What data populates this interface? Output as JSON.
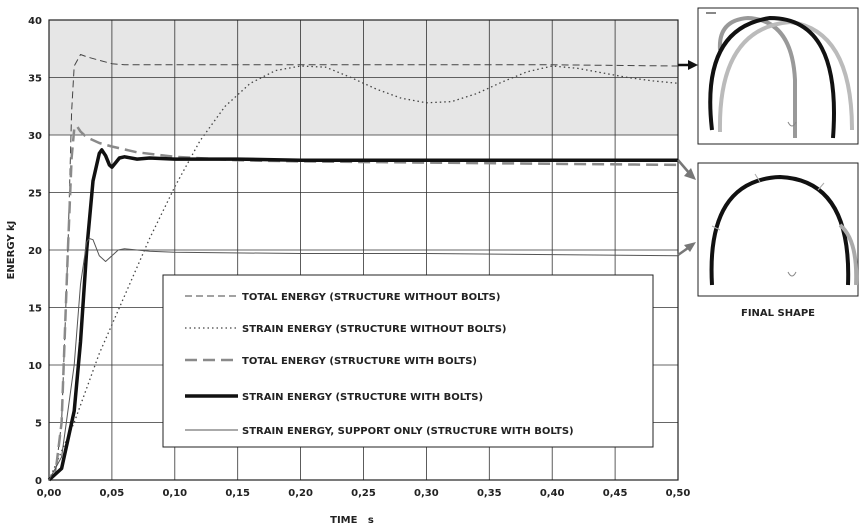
{
  "chart_data": {
    "type": "line",
    "xlabel": "TIME   s",
    "ylabel": "ENERGY   kJ",
    "xlim": [
      0,
      0.5
    ],
    "ylim": [
      0,
      40
    ],
    "x_ticks": [
      "0,00",
      "0,05",
      "0,10",
      "0,15",
      "0,20",
      "0,25",
      "0,30",
      "0,35",
      "0,40",
      "0,45",
      "0,50"
    ],
    "y_ticks": [
      "0",
      "5",
      "10",
      "15",
      "20",
      "25",
      "30",
      "35",
      "40"
    ],
    "grid": true,
    "legend_position": "center-bottom",
    "series": [
      {
        "name": "TOTAL ENERGY (STRUCTURE WITHOUT BOLTS)",
        "style": "dashed",
        "color": "#444444",
        "points": [
          [
            0,
            0
          ],
          [
            0.005,
            0.5
          ],
          [
            0.01,
            5
          ],
          [
            0.015,
            20
          ],
          [
            0.018,
            32
          ],
          [
            0.02,
            36
          ],
          [
            0.025,
            37
          ],
          [
            0.03,
            36.8
          ],
          [
            0.04,
            36.5
          ],
          [
            0.05,
            36.2
          ],
          [
            0.06,
            36.1
          ],
          [
            0.1,
            36.1
          ],
          [
            0.2,
            36.1
          ],
          [
            0.3,
            36.1
          ],
          [
            0.4,
            36.1
          ],
          [
            0.5,
            36.0
          ]
        ]
      },
      {
        "name": "STRAIN ENERGY (STRUCTURE WITHOUT BOLTS)",
        "style": "dotted",
        "color": "#444444",
        "points": [
          [
            0,
            0
          ],
          [
            0.02,
            5
          ],
          [
            0.04,
            11
          ],
          [
            0.06,
            16
          ],
          [
            0.08,
            21
          ],
          [
            0.1,
            25.5
          ],
          [
            0.12,
            29.5
          ],
          [
            0.14,
            32.5
          ],
          [
            0.16,
            34.5
          ],
          [
            0.18,
            35.6
          ],
          [
            0.2,
            36
          ],
          [
            0.22,
            35.9
          ],
          [
            0.24,
            35
          ],
          [
            0.26,
            34
          ],
          [
            0.28,
            33.2
          ],
          [
            0.3,
            32.8
          ],
          [
            0.32,
            32.9
          ],
          [
            0.34,
            33.6
          ],
          [
            0.36,
            34.6
          ],
          [
            0.38,
            35.5
          ],
          [
            0.4,
            36
          ],
          [
            0.42,
            35.8
          ],
          [
            0.44,
            35.4
          ],
          [
            0.46,
            35
          ],
          [
            0.48,
            34.7
          ],
          [
            0.5,
            34.5
          ]
        ]
      },
      {
        "name": "TOTAL ENERGY (STRUCTURE WITH BOLTS)",
        "style": "thick-dashed",
        "color": "#8a8a8a",
        "points": [
          [
            0,
            0
          ],
          [
            0.005,
            0.5
          ],
          [
            0.01,
            5
          ],
          [
            0.015,
            20
          ],
          [
            0.018,
            28
          ],
          [
            0.02,
            30.5
          ],
          [
            0.022,
            30.8
          ],
          [
            0.025,
            30.3
          ],
          [
            0.03,
            29.8
          ],
          [
            0.04,
            29.3
          ],
          [
            0.05,
            29
          ],
          [
            0.07,
            28.5
          ],
          [
            0.1,
            28.1
          ],
          [
            0.15,
            27.8
          ],
          [
            0.2,
            27.7
          ],
          [
            0.3,
            27.6
          ],
          [
            0.4,
            27.5
          ],
          [
            0.5,
            27.4
          ]
        ]
      },
      {
        "name": "STRAIN ENERGY (STRUCTURE WITH BOLTS)",
        "style": "thick-solid",
        "color": "#111111",
        "points": [
          [
            0,
            0
          ],
          [
            0.01,
            1
          ],
          [
            0.02,
            6
          ],
          [
            0.025,
            12
          ],
          [
            0.03,
            20
          ],
          [
            0.035,
            26
          ],
          [
            0.04,
            28.4
          ],
          [
            0.042,
            28.7
          ],
          [
            0.045,
            28.2
          ],
          [
            0.048,
            27.4
          ],
          [
            0.05,
            27.2
          ],
          [
            0.053,
            27.6
          ],
          [
            0.056,
            28
          ],
          [
            0.06,
            28.1
          ],
          [
            0.07,
            27.9
          ],
          [
            0.08,
            28
          ],
          [
            0.1,
            27.9
          ],
          [
            0.15,
            27.9
          ],
          [
            0.2,
            27.8
          ],
          [
            0.3,
            27.8
          ],
          [
            0.4,
            27.8
          ],
          [
            0.5,
            27.8
          ]
        ]
      },
      {
        "name": "STRAIN ENERGY, SUPPORT ONLY (STRUCTURE WITH BOLTS)",
        "style": "thin-solid",
        "color": "#555555",
        "points": [
          [
            0,
            0
          ],
          [
            0.01,
            2
          ],
          [
            0.02,
            10
          ],
          [
            0.025,
            17
          ],
          [
            0.03,
            20.7
          ],
          [
            0.032,
            21
          ],
          [
            0.035,
            20.9
          ],
          [
            0.04,
            19.5
          ],
          [
            0.045,
            19
          ],
          [
            0.05,
            19.5
          ],
          [
            0.055,
            20
          ],
          [
            0.06,
            20.1
          ],
          [
            0.08,
            19.9
          ],
          [
            0.1,
            19.8
          ],
          [
            0.2,
            19.7
          ],
          [
            0.3,
            19.7
          ],
          [
            0.4,
            19.6
          ],
          [
            0.5,
            19.5
          ]
        ]
      }
    ]
  },
  "inset": {
    "caption": "FINAL SHAPE"
  }
}
